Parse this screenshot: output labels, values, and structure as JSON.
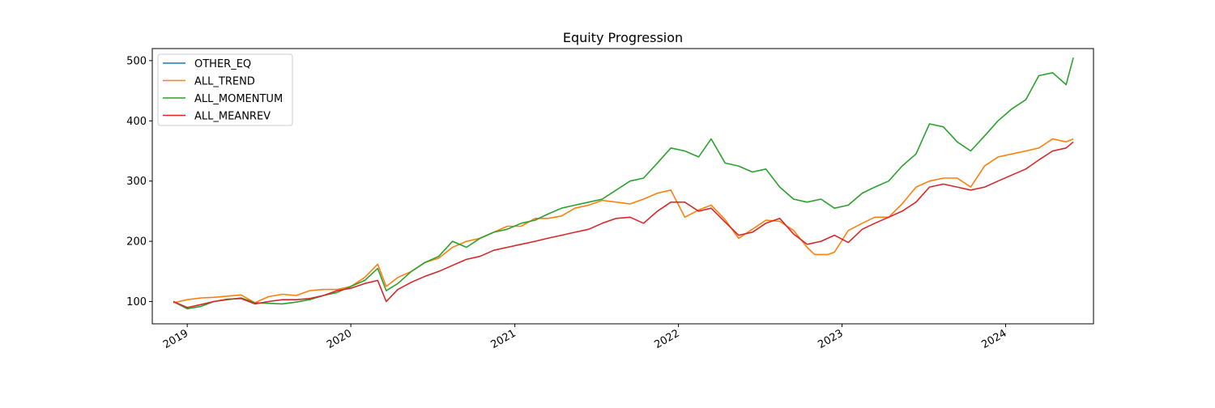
{
  "chart_data": {
    "type": "line",
    "title": "Equity Progression",
    "xlabel": "",
    "ylabel": "",
    "x_type": "date",
    "xlim": [
      "2018-10-15",
      "2024-07-15"
    ],
    "ylim": [
      63,
      520
    ],
    "x_ticks": [
      {
        "date": "2019-01-01",
        "label": "2019"
      },
      {
        "date": "2020-01-01",
        "label": "2020"
      },
      {
        "date": "2021-01-01",
        "label": "2021"
      },
      {
        "date": "2022-01-01",
        "label": "2022"
      },
      {
        "date": "2023-01-01",
        "label": "2023"
      },
      {
        "date": "2024-01-01",
        "label": "2024"
      }
    ],
    "y_ticks": [
      100,
      200,
      300,
      400,
      500
    ],
    "grid": false,
    "legend_position": "top-left",
    "series": [
      {
        "name": "OTHER_EQ",
        "color": "#1f77b4",
        "x": [],
        "y": []
      },
      {
        "name": "ALL_TREND",
        "color": "#ff7f0e",
        "x": [
          "2018-12-01",
          "2019-01-01",
          "2019-02-01",
          "2019-03-01",
          "2019-04-01",
          "2019-05-01",
          "2019-06-01",
          "2019-07-01",
          "2019-08-01",
          "2019-09-01",
          "2019-10-01",
          "2019-11-01",
          "2019-12-01",
          "2020-01-01",
          "2020-02-01",
          "2020-03-01",
          "2020-03-20",
          "2020-04-15",
          "2020-05-15",
          "2020-06-15",
          "2020-07-15",
          "2020-08-15",
          "2020-09-15",
          "2020-10-15",
          "2020-11-15",
          "2020-12-15",
          "2021-01-15",
          "2021-02-15",
          "2021-03-15",
          "2021-04-15",
          "2021-05-15",
          "2021-06-15",
          "2021-07-15",
          "2021-08-15",
          "2021-09-15",
          "2021-10-15",
          "2021-11-15",
          "2021-12-15",
          "2022-01-15",
          "2022-02-15",
          "2022-03-15",
          "2022-04-15",
          "2022-05-15",
          "2022-06-15",
          "2022-07-15",
          "2022-08-15",
          "2022-09-15",
          "2022-10-15",
          "2022-11-01",
          "2022-12-01",
          "2022-12-15",
          "2023-01-15",
          "2023-02-15",
          "2023-03-15",
          "2023-04-15",
          "2023-05-15",
          "2023-06-15",
          "2023-07-15",
          "2023-08-15",
          "2023-09-15",
          "2023-10-15",
          "2023-11-15",
          "2023-12-15",
          "2024-01-15",
          "2024-02-15",
          "2024-03-15",
          "2024-04-15",
          "2024-05-15",
          "2024-05-31"
        ],
        "y": [
          98,
          103,
          106,
          107,
          109,
          111,
          98,
          108,
          112,
          110,
          118,
          120,
          120,
          125,
          140,
          162,
          125,
          140,
          150,
          165,
          172,
          190,
          200,
          205,
          215,
          225,
          225,
          238,
          238,
          242,
          255,
          260,
          268,
          265,
          262,
          270,
          280,
          285,
          240,
          252,
          260,
          236,
          205,
          220,
          235,
          233,
          218,
          190,
          178,
          178,
          182,
          218,
          230,
          240,
          240,
          262,
          290,
          300,
          305,
          305,
          290,
          325,
          340,
          345,
          350,
          355,
          370,
          365,
          370
        ]
      },
      {
        "name": "ALL_MOMENTUM",
        "color": "#2ca02c",
        "x": [
          "2018-12-01",
          "2019-01-01",
          "2019-02-01",
          "2019-03-01",
          "2019-04-01",
          "2019-05-01",
          "2019-06-01",
          "2019-07-01",
          "2019-08-01",
          "2019-09-01",
          "2019-10-01",
          "2019-11-01",
          "2019-12-01",
          "2020-01-01",
          "2020-02-01",
          "2020-03-01",
          "2020-03-20",
          "2020-04-15",
          "2020-05-15",
          "2020-06-15",
          "2020-07-15",
          "2020-08-15",
          "2020-09-15",
          "2020-10-15",
          "2020-11-15",
          "2020-12-15",
          "2021-01-15",
          "2021-02-15",
          "2021-03-15",
          "2021-04-15",
          "2021-05-15",
          "2021-06-15",
          "2021-07-15",
          "2021-08-15",
          "2021-09-15",
          "2021-10-15",
          "2021-11-15",
          "2021-12-15",
          "2022-01-15",
          "2022-02-15",
          "2022-03-15",
          "2022-04-15",
          "2022-05-15",
          "2022-06-15",
          "2022-07-15",
          "2022-08-15",
          "2022-09-15",
          "2022-10-15",
          "2022-11-15",
          "2022-12-15",
          "2023-01-15",
          "2023-02-15",
          "2023-03-15",
          "2023-04-15",
          "2023-05-15",
          "2023-06-15",
          "2023-07-15",
          "2023-08-15",
          "2023-09-15",
          "2023-10-15",
          "2023-11-15",
          "2023-12-15",
          "2024-01-15",
          "2024-02-15",
          "2024-03-15",
          "2024-04-15",
          "2024-05-15",
          "2024-05-31"
        ],
        "y": [
          100,
          88,
          92,
          100,
          103,
          106,
          98,
          97,
          96,
          99,
          103,
          110,
          115,
          125,
          135,
          155,
          118,
          130,
          150,
          165,
          175,
          200,
          190,
          205,
          215,
          220,
          230,
          235,
          245,
          255,
          260,
          265,
          270,
          285,
          300,
          305,
          330,
          355,
          350,
          340,
          370,
          330,
          325,
          315,
          320,
          290,
          270,
          265,
          270,
          255,
          260,
          280,
          290,
          300,
          325,
          345,
          395,
          390,
          365,
          350,
          375,
          400,
          420,
          435,
          475,
          480,
          460,
          505
        ]
      },
      {
        "name": "ALL_MEANREV",
        "color": "#d62728",
        "x": [
          "2018-12-01",
          "2019-01-01",
          "2019-02-01",
          "2019-03-01",
          "2019-04-01",
          "2019-05-01",
          "2019-06-01",
          "2019-07-01",
          "2019-08-01",
          "2019-09-01",
          "2019-10-01",
          "2019-11-01",
          "2019-12-01",
          "2020-01-01",
          "2020-02-01",
          "2020-03-01",
          "2020-03-20",
          "2020-04-15",
          "2020-05-15",
          "2020-06-15",
          "2020-07-15",
          "2020-08-15",
          "2020-09-15",
          "2020-10-15",
          "2020-11-15",
          "2020-12-15",
          "2021-01-15",
          "2021-02-15",
          "2021-03-15",
          "2021-04-15",
          "2021-05-15",
          "2021-06-15",
          "2021-07-15",
          "2021-08-15",
          "2021-09-15",
          "2021-10-15",
          "2021-11-15",
          "2021-12-15",
          "2022-01-15",
          "2022-02-15",
          "2022-03-15",
          "2022-04-15",
          "2022-05-15",
          "2022-06-15",
          "2022-07-15",
          "2022-08-15",
          "2022-09-15",
          "2022-10-15",
          "2022-11-15",
          "2022-12-15",
          "2023-01-15",
          "2023-02-15",
          "2023-03-15",
          "2023-04-15",
          "2023-05-15",
          "2023-06-15",
          "2023-07-15",
          "2023-08-15",
          "2023-09-15",
          "2023-10-15",
          "2023-11-15",
          "2023-12-15",
          "2024-01-15",
          "2024-02-15",
          "2024-03-15",
          "2024-04-15",
          "2024-05-15",
          "2024-05-31"
        ],
        "y": [
          100,
          90,
          95,
          100,
          104,
          105,
          96,
          100,
          103,
          103,
          105,
          110,
          118,
          122,
          130,
          135,
          100,
          120,
          132,
          142,
          150,
          160,
          170,
          175,
          185,
          190,
          195,
          200,
          205,
          210,
          215,
          220,
          230,
          238,
          240,
          230,
          250,
          265,
          265,
          250,
          255,
          232,
          210,
          215,
          230,
          238,
          212,
          195,
          200,
          210,
          198,
          220,
          230,
          240,
          250,
          265,
          290,
          295,
          290,
          285,
          290,
          300,
          310,
          320,
          335,
          350,
          355,
          365
        ]
      }
    ]
  }
}
